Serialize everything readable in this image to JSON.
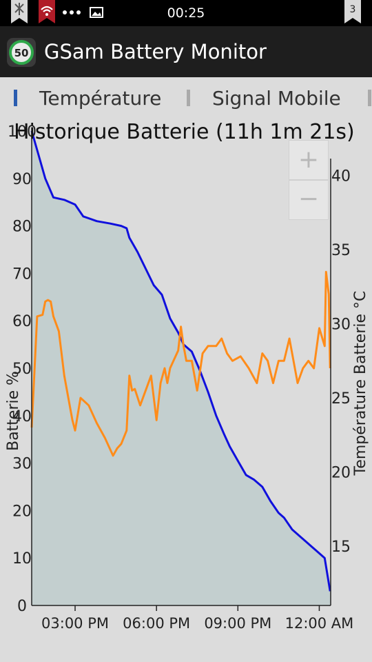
{
  "status_bar": {
    "time": "00:25",
    "notification_count": "3",
    "icons": [
      "notification-icon",
      "wifi-icon",
      "more-icon",
      "image-icon",
      "notification-icon"
    ]
  },
  "app": {
    "title": "GSam Battery Monitor",
    "icon_label": "50"
  },
  "tabs": [
    {
      "label": "Température",
      "color": "#2a5db0",
      "active": true
    },
    {
      "label": "Signal Mobile",
      "color": "#aaaaaa",
      "active": false
    }
  ],
  "zoom": {
    "plus": "+",
    "minus": "−"
  },
  "colors": {
    "battery_line": "#1010dd",
    "battery_fill": "#c3cfcf",
    "temperature_line": "#ff8c1a",
    "background": "#dcdcdc"
  },
  "chart_data": {
    "type": "line",
    "title": "Historique Batterie (11h 1m 21s)",
    "x_unit": "hours since 1:24 PM",
    "x_ticks": [
      {
        "label": "03:00 PM",
        "x": 1.6
      },
      {
        "label": "06:00 PM",
        "x": 4.6
      },
      {
        "label": "09:00 PM",
        "x": 7.6
      },
      {
        "label": "12:00 AM",
        "x": 10.6
      }
    ],
    "xlim": [
      0,
      11.02
    ],
    "y_left": {
      "label": "Batterie %",
      "lim": [
        0,
        100
      ],
      "ticks": [
        0,
        10,
        20,
        30,
        40,
        50,
        60,
        70,
        80,
        90,
        100
      ]
    },
    "y_right": {
      "label": "Température Batterie °C",
      "lim": [
        11,
        43
      ],
      "ticks": [
        15,
        20,
        25,
        30,
        35,
        40
      ]
    },
    "series": [
      {
        "name": "Batterie %",
        "axis": "left",
        "fill": true,
        "points": [
          [
            0,
            100
          ],
          [
            0.2,
            96
          ],
          [
            0.5,
            90
          ],
          [
            0.8,
            86
          ],
          [
            1.2,
            85.5
          ],
          [
            1.6,
            84.5
          ],
          [
            1.9,
            82
          ],
          [
            2.4,
            81
          ],
          [
            2.9,
            80.5
          ],
          [
            3.3,
            80
          ],
          [
            3.5,
            79.5
          ],
          [
            3.6,
            77.5
          ],
          [
            3.9,
            74.5
          ],
          [
            4.2,
            71
          ],
          [
            4.5,
            67.5
          ],
          [
            4.8,
            65.5
          ],
          [
            5.1,
            60.5
          ],
          [
            5.4,
            57.5
          ],
          [
            5.6,
            55
          ],
          [
            5.9,
            53.5
          ],
          [
            6.2,
            49.5
          ],
          [
            6.5,
            45
          ],
          [
            6.8,
            40
          ],
          [
            7.1,
            36
          ],
          [
            7.3,
            33.5
          ],
          [
            7.6,
            30.5
          ],
          [
            7.9,
            27.5
          ],
          [
            8.2,
            26.5
          ],
          [
            8.5,
            25
          ],
          [
            8.8,
            22
          ],
          [
            9.1,
            19.5
          ],
          [
            9.3,
            18.5
          ],
          [
            9.6,
            16
          ],
          [
            9.9,
            14.5
          ],
          [
            10.1,
            13.5
          ],
          [
            10.3,
            12.5
          ],
          [
            10.5,
            11.5
          ],
          [
            10.8,
            10
          ],
          [
            11.0,
            3
          ]
        ]
      },
      {
        "name": "Température Batterie °C",
        "axis": "right",
        "fill": false,
        "points": [
          [
            0,
            23
          ],
          [
            0.2,
            30.5
          ],
          [
            0.4,
            30.6
          ],
          [
            0.5,
            31.5
          ],
          [
            0.6,
            31.6
          ],
          [
            0.7,
            31.5
          ],
          [
            0.8,
            30.5
          ],
          [
            1.0,
            29.5
          ],
          [
            1.2,
            26.5
          ],
          [
            1.5,
            23.5
          ],
          [
            1.6,
            22.8
          ],
          [
            1.8,
            25
          ],
          [
            2.1,
            24.5
          ],
          [
            2.4,
            23.3
          ],
          [
            2.7,
            22.3
          ],
          [
            3.0,
            21.1
          ],
          [
            3.15,
            21.6
          ],
          [
            3.3,
            21.9
          ],
          [
            3.5,
            22.8
          ],
          [
            3.6,
            26.5
          ],
          [
            3.7,
            25.5
          ],
          [
            3.8,
            25.6
          ],
          [
            4.0,
            24.5
          ],
          [
            4.2,
            25.5
          ],
          [
            4.4,
            26.5
          ],
          [
            4.6,
            23.5
          ],
          [
            4.75,
            26
          ],
          [
            4.9,
            27
          ],
          [
            5.0,
            26
          ],
          [
            5.1,
            27
          ],
          [
            5.4,
            28.2
          ],
          [
            5.5,
            29.8
          ],
          [
            5.6,
            28.5
          ],
          [
            5.7,
            27.5
          ],
          [
            5.9,
            27.5
          ],
          [
            6.1,
            25.5
          ],
          [
            6.3,
            28
          ],
          [
            6.5,
            28.5
          ],
          [
            6.8,
            28.5
          ],
          [
            7.0,
            29
          ],
          [
            7.2,
            28
          ],
          [
            7.4,
            27.5
          ],
          [
            7.7,
            27.8
          ],
          [
            8.0,
            27
          ],
          [
            8.3,
            26
          ],
          [
            8.5,
            28
          ],
          [
            8.7,
            27.5
          ],
          [
            8.9,
            26
          ],
          [
            9.1,
            27.5
          ],
          [
            9.3,
            27.5
          ],
          [
            9.5,
            29
          ],
          [
            9.8,
            26
          ],
          [
            10.0,
            27
          ],
          [
            10.2,
            27.5
          ],
          [
            10.4,
            27
          ],
          [
            10.6,
            29.7
          ],
          [
            10.8,
            28.5
          ],
          [
            10.85,
            33.5
          ],
          [
            10.95,
            32
          ],
          [
            11.0,
            27
          ]
        ]
      }
    ],
    "grid": false,
    "legend": "none"
  }
}
